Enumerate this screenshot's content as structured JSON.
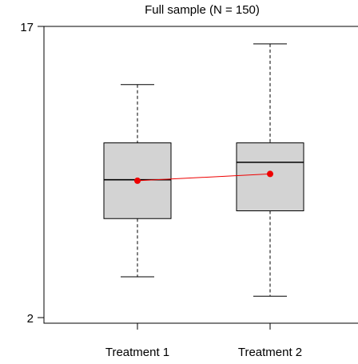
{
  "chart_data": {
    "type": "box",
    "title": "Full sample (N = 150)",
    "xlabel": "",
    "ylabel": "",
    "categories": [
      "Treatment 1",
      "Treatment 2"
    ],
    "y_ticks": [
      2,
      17
    ],
    "ylim": [
      2,
      17
    ],
    "boxes": [
      {
        "name": "Treatment 1",
        "whisker_low": 4.1,
        "q1": 7.1,
        "median": 9.1,
        "q3": 11.0,
        "whisker_high": 14.0,
        "mean": 9.05
      },
      {
        "name": "Treatment 2",
        "whisker_low": 3.1,
        "q1": 7.5,
        "median": 10.0,
        "q3": 11.0,
        "whisker_high": 16.1,
        "mean": 9.4
      }
    ],
    "mean_line": {
      "visible": true
    },
    "grid": false,
    "colors": {
      "box_fill": "#d3d3d3",
      "box_stroke": "#000000",
      "mean": "#ee0000",
      "axis": "#000000"
    }
  }
}
